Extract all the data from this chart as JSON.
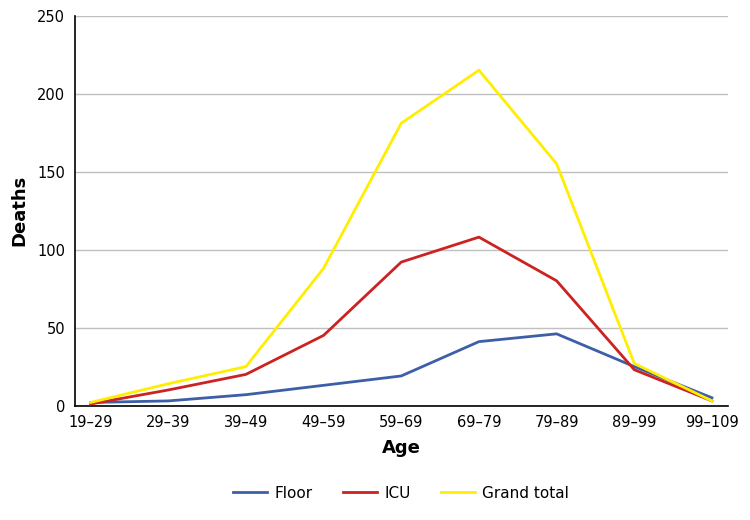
{
  "x_labels": [
    "19–29",
    "29–39",
    "39–49",
    "49–59",
    "59–69",
    "69–79",
    "79–89",
    "89–99",
    "99–109"
  ],
  "x_values": [
    0,
    1,
    2,
    3,
    4,
    5,
    6,
    7,
    8
  ],
  "floor": [
    2,
    3,
    7,
    13,
    19,
    41,
    46,
    25,
    5
  ],
  "icu": [
    1,
    10,
    20,
    45,
    92,
    108,
    80,
    23,
    3
  ],
  "grand_total": [
    2,
    14,
    25,
    88,
    181,
    215,
    155,
    27,
    3
  ],
  "floor_color": "#3c5fa8",
  "icu_color": "#cc2222",
  "grand_total_color": "#ffee00",
  "floor_label": "Floor",
  "icu_label": "ICU",
  "grand_total_label": "Grand total",
  "xlabel": "Age",
  "ylabel": "Deaths",
  "ylim": [
    0,
    250
  ],
  "yticks": [
    0,
    50,
    100,
    150,
    200,
    250
  ],
  "line_width": 2.0,
  "grid_color": "#c0c0c0",
  "background_color": "#ffffff",
  "xlabel_fontsize": 13,
  "ylabel_fontsize": 13,
  "tick_fontsize": 10.5,
  "legend_fontsize": 11
}
